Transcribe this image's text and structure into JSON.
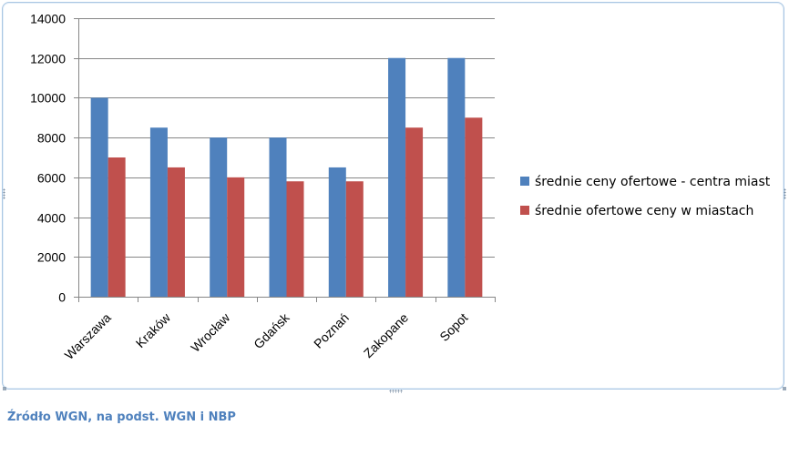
{
  "chart_data": {
    "type": "bar",
    "categories": [
      "Warszawa",
      "Kraków",
      "Wrocław",
      "Gdańsk",
      "Poznań",
      "Zakopane",
      "Sopot"
    ],
    "series": [
      {
        "name": "średnie ceny ofertowe - centra miast",
        "color": "#4f81bd",
        "values": [
          10000,
          8500,
          8000,
          8000,
          6500,
          12000,
          12000
        ]
      },
      {
        "name": "średnie ofertowe ceny w miastach",
        "color": "#c0504d",
        "values": [
          7000,
          6500,
          6000,
          5800,
          5800,
          8500,
          9000
        ]
      }
    ],
    "yticks": [
      "0",
      "2000",
      "4000",
      "6000",
      "8000",
      "10000",
      "12000",
      "14000"
    ],
    "ylim": [
      0,
      14000
    ],
    "grid": true,
    "legend_position": "right",
    "title": "",
    "xlabel": "",
    "ylabel": ""
  },
  "caption": {
    "source": "Źródło WGN, na podst. WGN i NBP",
    "color": "#4f81bd"
  }
}
